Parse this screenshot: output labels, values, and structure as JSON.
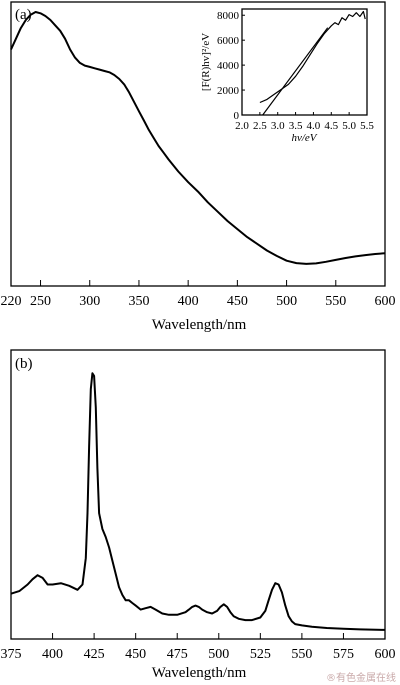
{
  "chart_data": [
    {
      "panel": "(a)",
      "type": "line",
      "xlabel": "Wavelength/nm",
      "ylabel": "",
      "xlim": [
        220,
        600
      ],
      "xticks": [
        220,
        250,
        300,
        350,
        400,
        450,
        500,
        550,
        600
      ],
      "grid": false,
      "series": [
        {
          "x": [
            220,
            225,
            230,
            235,
            240,
            245,
            250,
            255,
            260,
            265,
            270,
            275,
            280,
            285,
            290,
            295,
            300,
            305,
            310,
            315,
            320,
            325,
            330,
            335,
            340,
            345,
            350,
            355,
            360,
            365,
            370,
            375,
            380,
            390,
            400,
            410,
            420,
            430,
            440,
            450,
            460,
            470,
            480,
            490,
            500,
            510,
            520,
            530,
            540,
            550,
            560,
            570,
            580,
            590,
            600
          ],
          "y": [
            0.86,
            0.9,
            0.94,
            0.97,
            0.99,
            1.0,
            0.995,
            0.985,
            0.97,
            0.95,
            0.93,
            0.9,
            0.86,
            0.83,
            0.81,
            0.8,
            0.795,
            0.79,
            0.785,
            0.78,
            0.775,
            0.765,
            0.75,
            0.73,
            0.7,
            0.665,
            0.63,
            0.595,
            0.56,
            0.53,
            0.5,
            0.475,
            0.45,
            0.405,
            0.365,
            0.33,
            0.29,
            0.255,
            0.22,
            0.19,
            0.16,
            0.135,
            0.11,
            0.09,
            0.072,
            0.063,
            0.06,
            0.062,
            0.068,
            0.075,
            0.082,
            0.088,
            0.093,
            0.097,
            0.1
          ]
        }
      ],
      "inset": {
        "type": "line",
        "xlabel": "hv/eV",
        "ylabel": "[F(R)hv]²/eV",
        "xlim": [
          2.0,
          5.5
        ],
        "ylim": [
          0,
          8500
        ],
        "xticks": [
          "2.0",
          "2.5",
          "3.0",
          "3.5",
          "4.0",
          "4.5",
          "5.0",
          "5.5"
        ],
        "yticks": [
          "0",
          "2000",
          "4000",
          "6000",
          "8000"
        ],
        "series": [
          {
            "x": [
              2.5,
              2.7,
              2.9,
              3.1,
              3.3,
              3.5,
              3.7,
              3.9,
              4.1,
              4.3,
              4.5,
              4.6,
              4.7,
              4.8,
              4.9,
              5.0,
              5.1,
              5.2,
              5.3,
              5.4,
              5.45
            ],
            "y": [
              1000,
              1250,
              1650,
              2050,
              2450,
              3100,
              3900,
              4800,
              5700,
              6500,
              7150,
              7400,
              7250,
              7800,
              7600,
              8050,
              7900,
              8200,
              7900,
              8300,
              7700
            ]
          },
          {
            "x": [
              2.58,
              4.4
            ],
            "y": [
              0,
              7000
            ]
          }
        ]
      }
    },
    {
      "panel": "(b)",
      "type": "line",
      "xlabel": "Wavelength/nm",
      "ylabel": "",
      "xlim": [
        375,
        600
      ],
      "xticks": [
        375,
        400,
        425,
        450,
        475,
        500,
        525,
        550,
        575,
        600
      ],
      "grid": false,
      "series": [
        {
          "x": [
            375,
            380,
            385,
            388,
            391,
            394,
            397,
            400,
            405,
            410,
            415,
            418,
            420,
            421,
            422,
            423,
            424,
            425,
            426,
            427,
            428,
            430,
            432,
            434,
            436,
            438,
            440,
            442,
            444,
            446,
            448,
            450,
            453,
            456,
            459,
            462,
            466,
            470,
            475,
            480,
            482,
            484,
            486,
            488,
            490,
            493,
            496,
            499,
            501,
            503,
            505,
            507,
            509,
            512,
            516,
            520,
            525,
            528,
            530,
            532,
            534,
            536,
            538,
            540,
            542,
            544,
            546,
            550,
            556,
            565,
            575,
            585,
            600
          ],
          "y": [
            0.145,
            0.155,
            0.18,
            0.2,
            0.215,
            0.205,
            0.18,
            0.18,
            0.185,
            0.175,
            0.16,
            0.18,
            0.28,
            0.45,
            0.7,
            0.92,
            0.98,
            0.97,
            0.85,
            0.62,
            0.45,
            0.39,
            0.36,
            0.32,
            0.27,
            0.22,
            0.17,
            0.14,
            0.12,
            0.12,
            0.11,
            0.1,
            0.085,
            0.09,
            0.095,
            0.085,
            0.07,
            0.065,
            0.065,
            0.075,
            0.085,
            0.095,
            0.1,
            0.095,
            0.085,
            0.075,
            0.07,
            0.08,
            0.095,
            0.105,
            0.095,
            0.075,
            0.06,
            0.05,
            0.045,
            0.045,
            0.055,
            0.08,
            0.12,
            0.16,
            0.185,
            0.18,
            0.15,
            0.1,
            0.06,
            0.04,
            0.03,
            0.025,
            0.02,
            0.015,
            0.012,
            0.01,
            0.008
          ]
        }
      ]
    }
  ],
  "watermark": "®有色金属在线"
}
